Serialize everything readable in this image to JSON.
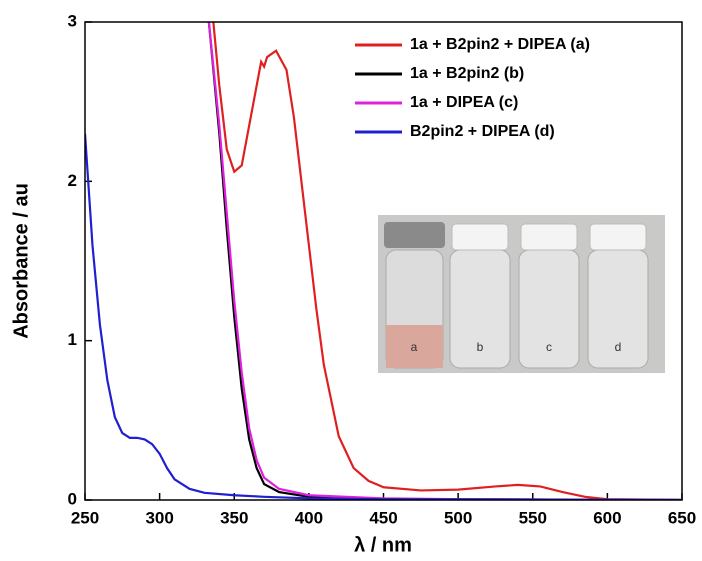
{
  "chart_data": {
    "type": "line",
    "xlabel": "λ / nm",
    "ylabel": "Absorbance / au",
    "xlim": [
      250,
      650
    ],
    "ylim": [
      0,
      3
    ],
    "xticks": [
      250,
      300,
      350,
      400,
      450,
      500,
      550,
      600,
      650
    ],
    "yticks": [
      0,
      1,
      2,
      3
    ],
    "series": [
      {
        "name": "1a + B2pin2 + DIPEA (a)",
        "color": "#e02020",
        "x": [
          336,
          340,
          345,
          350,
          355,
          360,
          365,
          368,
          370,
          372,
          378,
          385,
          390,
          395,
          400,
          405,
          410,
          420,
          430,
          440,
          450,
          475,
          500,
          525,
          540,
          555,
          570,
          585,
          600,
          650
        ],
        "values": [
          3.0,
          2.6,
          2.2,
          2.06,
          2.1,
          2.35,
          2.6,
          2.75,
          2.72,
          2.78,
          2.82,
          2.7,
          2.4,
          2.0,
          1.6,
          1.2,
          0.85,
          0.4,
          0.2,
          0.12,
          0.08,
          0.06,
          0.065,
          0.085,
          0.095,
          0.085,
          0.05,
          0.02,
          0.005,
          0
        ]
      },
      {
        "name": "1a + B2pin2 (b)",
        "color": "#000000",
        "x": [
          333,
          340,
          345,
          350,
          355,
          360,
          365,
          370,
          380,
          400,
          450,
          650
        ],
        "values": [
          3.0,
          2.3,
          1.7,
          1.15,
          0.7,
          0.38,
          0.2,
          0.1,
          0.05,
          0.02,
          0.005,
          0
        ]
      },
      {
        "name": "1a + DIPEA (c)",
        "color": "#e020e0",
        "x": [
          333,
          340,
          345,
          350,
          355,
          360,
          365,
          370,
          380,
          400,
          450,
          500,
          650
        ],
        "values": [
          3.0,
          2.35,
          1.8,
          1.25,
          0.8,
          0.45,
          0.25,
          0.14,
          0.07,
          0.03,
          0.01,
          0.005,
          0
        ]
      },
      {
        "name": "B2pin2 + DIPEA (d)",
        "color": "#2020d0",
        "x": [
          250,
          255,
          260,
          265,
          270,
          275,
          280,
          285,
          290,
          295,
          300,
          305,
          310,
          320,
          330,
          350,
          370,
          400,
          450,
          650
        ],
        "values": [
          2.3,
          1.6,
          1.1,
          0.75,
          0.52,
          0.42,
          0.39,
          0.39,
          0.38,
          0.35,
          0.29,
          0.2,
          0.13,
          0.07,
          0.045,
          0.03,
          0.02,
          0.01,
          0.005,
          0
        ]
      }
    ],
    "inset_labels": [
      "a",
      "b",
      "c",
      "d"
    ]
  }
}
